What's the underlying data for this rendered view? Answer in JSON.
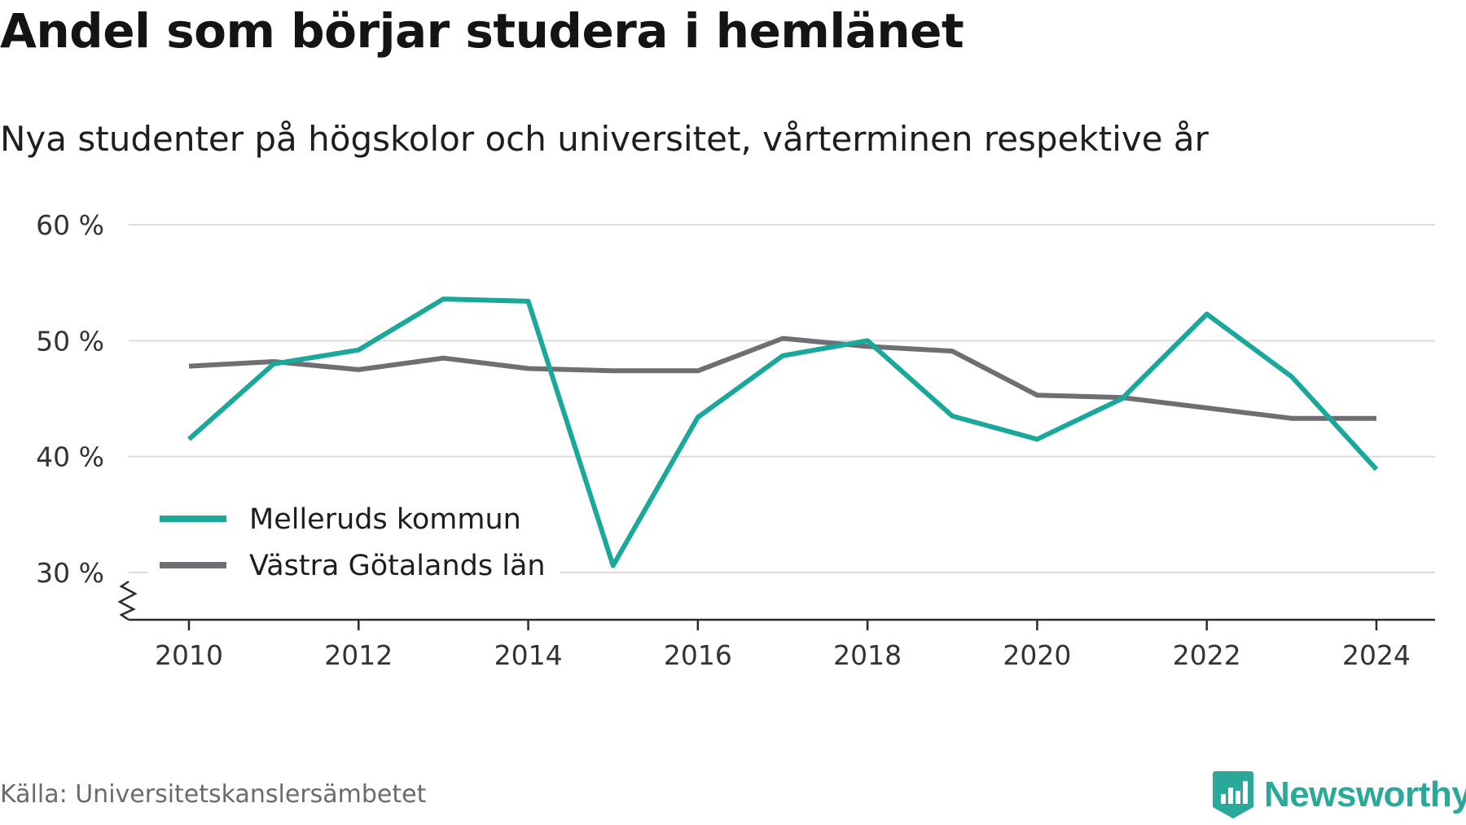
{
  "title": "Andel som börjar studera i hemlänet",
  "subtitle": "Nya studenter på högskolor och universitet, vårterminen respektive år",
  "source": "Källa: Universitetskanslersämbetet",
  "brand": {
    "name": "Newsworthy",
    "color": "#2aa89a",
    "icon": "newsworthy-logo-icon"
  },
  "chart_data": {
    "type": "line",
    "x": [
      2010,
      2011,
      2012,
      2013,
      2014,
      2015,
      2016,
      2017,
      2018,
      2019,
      2020,
      2021,
      2022,
      2023,
      2024
    ],
    "x_ticks": [
      2010,
      2012,
      2014,
      2016,
      2018,
      2020,
      2022,
      2024
    ],
    "y_ticks": [
      30,
      40,
      50,
      60
    ],
    "y_tick_labels": [
      "30 %",
      "40 %",
      "50 %",
      "60 %"
    ],
    "ylim": [
      26,
      60
    ],
    "y_axis_break": true,
    "grid": true,
    "legend_position": "bottom-left",
    "series": [
      {
        "name": "Melleruds kommun",
        "color": "#1aa89a",
        "values": [
          41.5,
          48.0,
          49.2,
          53.6,
          53.4,
          30.6,
          43.4,
          48.7,
          50.0,
          43.5,
          41.5,
          45.0,
          52.3,
          46.9,
          38.9
        ]
      },
      {
        "name": "Västra Götalands län",
        "color": "#6e6e73",
        "values": [
          47.8,
          48.2,
          47.5,
          48.5,
          47.6,
          47.4,
          47.4,
          50.2,
          49.5,
          49.1,
          45.3,
          45.1,
          44.2,
          43.3,
          43.3
        ]
      }
    ]
  }
}
